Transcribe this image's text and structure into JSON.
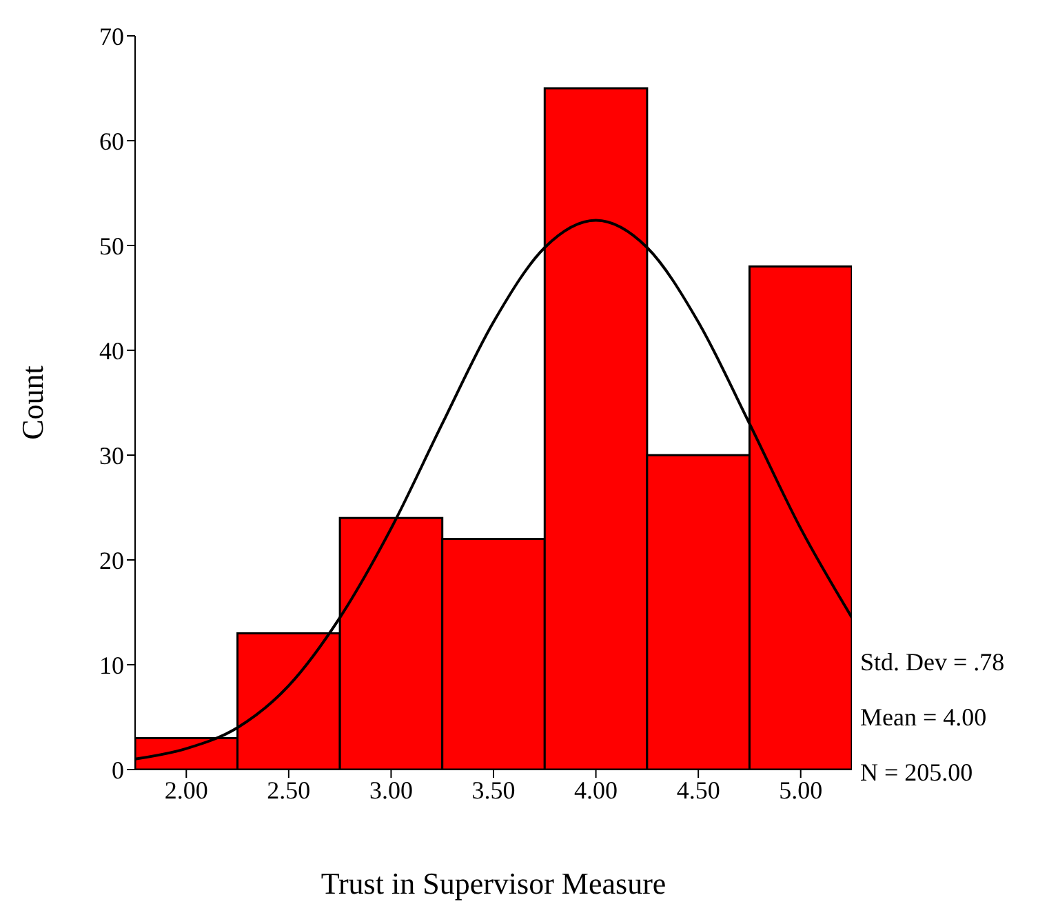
{
  "chart_data": {
    "type": "histogram",
    "xlabel": "Trust in Supervisor Measure",
    "ylabel": "Count",
    "bins": [
      1.75,
      2.25,
      2.75,
      3.25,
      3.75,
      4.25,
      4.75,
      5.25
    ],
    "values": [
      3,
      13,
      24,
      22,
      65,
      30,
      48
    ],
    "color": "#ff0000",
    "series": [
      {
        "type": "line",
        "color": "#000000",
        "x": [
          1.75,
          2.0,
          2.25,
          2.5,
          2.75,
          3.0,
          3.25,
          3.5,
          3.75,
          4.0,
          4.25,
          4.5,
          4.75,
          5.0,
          5.25
        ],
        "values": [
          1,
          2,
          4,
          8,
          14.5,
          23,
          33,
          42.7,
          49.8,
          52.4,
          49.8,
          42.7,
          33,
          23,
          14.5
        ]
      }
    ],
    "xlim": [
      1.75,
      5.25
    ],
    "xticks": [
      {
        "value": 2,
        "label": "2.00"
      },
      {
        "value": 2.5,
        "label": "2.50"
      },
      {
        "value": 3,
        "label": "3.00"
      },
      {
        "value": 3.5,
        "label": "3.50"
      },
      {
        "value": 4,
        "label": "4.00"
      },
      {
        "value": 4.5,
        "label": "4.50"
      },
      {
        "value": 5,
        "label": "5.00"
      }
    ],
    "ylim": [
      0,
      70
    ],
    "yticks": [
      0,
      10,
      20,
      30,
      40,
      50,
      60,
      70
    ],
    "annotations": [
      "Std. Dev = .78",
      "Mean = 4.00",
      "N = 205.00"
    ]
  }
}
